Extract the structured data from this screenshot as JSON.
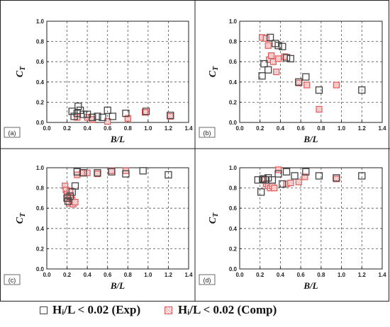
{
  "legend": {
    "exp": "Hᵢ/L < 0.02 (Exp)",
    "comp": "Hᵢ/L < 0.02 (Comp)"
  },
  "colors": {
    "exp": "#444444",
    "comp": "#e05a5a",
    "comp_fill": "#f7b0b0"
  },
  "chart_data": [
    {
      "type": "scatter",
      "panel_label": "(a)",
      "xlabel": "B/L",
      "ylabel": "C_T",
      "xlim": [
        0.0,
        1.4
      ],
      "ylim": [
        0.0,
        1.0
      ],
      "xticks": [
        "0.0",
        "0.2",
        "0.4",
        "0.6",
        "0.8",
        "1.0",
        "1.2",
        "1.4"
      ],
      "yticks": [
        "0.0",
        "0.2",
        "0.4",
        "0.6",
        "0.8",
        "1.0"
      ],
      "grid": true,
      "series": [
        {
          "name": "Hᵢ/L < 0.02 (Exp)",
          "marker": "open-square",
          "x": [
            0.25,
            0.27,
            0.3,
            0.31,
            0.33,
            0.36,
            0.4,
            0.45,
            0.5,
            0.55,
            0.6,
            0.65,
            0.78,
            0.98,
            1.22
          ],
          "y": [
            0.11,
            0.06,
            0.09,
            0.16,
            0.12,
            0.08,
            0.08,
            0.05,
            0.06,
            0.05,
            0.12,
            0.06,
            0.09,
            0.11,
            0.07
          ]
        },
        {
          "name": "Hᵢ/L < 0.02 (Comp)",
          "marker": "hatched-square",
          "x": [
            0.3,
            0.4,
            0.45,
            0.6,
            0.8,
            0.97,
            1.22
          ],
          "y": [
            0.05,
            0.05,
            0.03,
            0.01,
            0.04,
            0.1,
            0.06
          ]
        }
      ]
    },
    {
      "type": "scatter",
      "panel_label": "(b)",
      "xlabel": "B/L",
      "ylabel": "C_T",
      "xlim": [
        0.0,
        1.4
      ],
      "ylim": [
        0.0,
        1.0
      ],
      "xticks": [
        "0.0",
        "0.2",
        "0.4",
        "0.6",
        "0.8",
        "1.0",
        "1.2",
        "1.4"
      ],
      "yticks": [
        "0.0",
        "0.2",
        "0.4",
        "0.6",
        "0.8",
        "1.0"
      ],
      "grid": true,
      "series": [
        {
          "name": "Hᵢ/L < 0.02 (Exp)",
          "marker": "open-square",
          "x": [
            0.22,
            0.24,
            0.28,
            0.3,
            0.35,
            0.38,
            0.42,
            0.46,
            0.5,
            0.58,
            0.65,
            0.78,
            1.2
          ],
          "y": [
            0.46,
            0.58,
            0.52,
            0.84,
            0.78,
            0.76,
            0.75,
            0.64,
            0.63,
            0.4,
            0.45,
            0.32,
            0.32
          ]
        },
        {
          "name": "Hᵢ/L < 0.02 (Comp)",
          "marker": "hatched-square",
          "x": [
            0.22,
            0.26,
            0.28,
            0.29,
            0.31,
            0.33,
            0.36,
            0.38,
            0.44,
            0.58,
            0.66,
            0.78,
            0.95
          ],
          "y": [
            0.84,
            0.83,
            0.76,
            0.62,
            0.66,
            0.6,
            0.5,
            0.63,
            0.65,
            0.39,
            0.37,
            0.13,
            0.37
          ]
        }
      ]
    },
    {
      "type": "scatter",
      "panel_label": "(c)",
      "xlabel": "B/L",
      "ylabel": "C_T",
      "xlim": [
        0.0,
        1.4
      ],
      "ylim": [
        0.0,
        1.0
      ],
      "xticks": [
        "0.0",
        "0.2",
        "0.4",
        "0.6",
        "0.8",
        "1.0",
        "1.2",
        "1.4"
      ],
      "yticks": [
        "0.0",
        "0.2",
        "0.4",
        "0.6",
        "0.8",
        "1.0"
      ],
      "grid": true,
      "series": [
        {
          "name": "Hᵢ/L < 0.02 (Exp)",
          "marker": "open-square",
          "x": [
            0.2,
            0.21,
            0.23,
            0.25,
            0.28,
            0.3,
            0.36,
            0.5,
            0.64,
            0.78,
            0.95,
            1.2
          ],
          "y": [
            0.7,
            0.67,
            0.72,
            0.76,
            0.82,
            0.96,
            0.95,
            0.95,
            0.96,
            0.94,
            0.97,
            0.93
          ]
        },
        {
          "name": "Hᵢ/L < 0.02 (Comp)",
          "marker": "hatched-square",
          "x": [
            0.18,
            0.19,
            0.2,
            0.21,
            0.22,
            0.23,
            0.24,
            0.25,
            0.26,
            0.28,
            0.3,
            0.35,
            0.4,
            0.5,
            0.64,
            0.78
          ],
          "y": [
            0.82,
            0.78,
            0.74,
            0.72,
            0.65,
            0.77,
            0.7,
            0.68,
            0.64,
            0.66,
            0.93,
            0.95,
            0.95,
            0.94,
            0.97,
            0.97
          ]
        }
      ]
    },
    {
      "type": "scatter",
      "panel_label": "(d)",
      "xlabel": "B/L",
      "ylabel": "C_T",
      "xlim": [
        0.0,
        1.4
      ],
      "ylim": [
        0.0,
        1.0
      ],
      "xticks": [
        "0.0",
        "0.2",
        "0.4",
        "0.6",
        "0.8",
        "1.0",
        "1.2",
        "1.4"
      ],
      "yticks": [
        "0.0",
        "0.2",
        "0.4",
        "0.6",
        "0.8",
        "1.0"
      ],
      "grid": true,
      "series": [
        {
          "name": "Hᵢ/L < 0.02 (Exp)",
          "marker": "open-square",
          "x": [
            0.18,
            0.21,
            0.23,
            0.25,
            0.28,
            0.32,
            0.38,
            0.42,
            0.46,
            0.54,
            0.65,
            0.78,
            0.95,
            1.2
          ],
          "y": [
            0.88,
            0.76,
            0.89,
            0.88,
            0.9,
            0.88,
            0.94,
            0.84,
            0.96,
            0.92,
            0.96,
            0.92,
            0.9,
            0.92
          ]
        },
        {
          "name": "Hᵢ/L < 0.02 (Comp)",
          "marker": "hatched-square",
          "x": [
            0.22,
            0.26,
            0.28,
            0.3,
            0.32,
            0.34,
            0.38,
            0.46,
            0.5,
            0.58,
            0.64,
            0.95
          ],
          "y": [
            0.88,
            0.84,
            0.82,
            0.8,
            0.82,
            0.8,
            0.98,
            0.84,
            0.85,
            0.86,
            0.91,
            0.89
          ]
        }
      ]
    }
  ]
}
